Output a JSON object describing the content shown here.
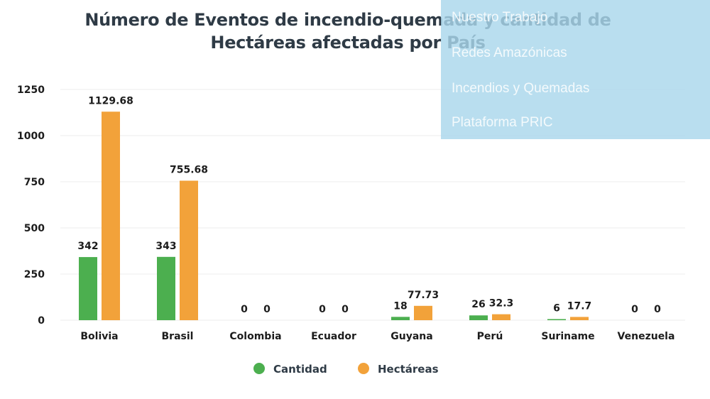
{
  "title_lines": [
    "Número de Eventos de incendio-quemada y cantidad de",
    "Hectáreas afectadas por País"
  ],
  "overlay_menu": {
    "items": [
      "Nuestro Trabajo",
      "Redes Amazónicas",
      "Incendios y Quemadas",
      "Plataforma PRIC"
    ]
  },
  "chart_data": {
    "type": "bar",
    "title": "Número de Eventos de incendio-quemada y cantidad de Hectáreas afectadas por País",
    "categories": [
      "Bolivia",
      "Brasil",
      "Colombia",
      "Ecuador",
      "Guyana",
      "Perú",
      "Suriname",
      "Venezuela"
    ],
    "series": [
      {
        "name": "Cantidad",
        "color": "#4caf4f",
        "values": [
          342,
          343,
          0,
          0,
          18,
          26,
          6,
          0
        ],
        "labels": [
          "342",
          "343",
          "0",
          "0",
          "18",
          "26",
          "6",
          "0"
        ]
      },
      {
        "name": "Hectáreas",
        "color": "#f2a23a",
        "values": [
          1129.68,
          755.68,
          0,
          0,
          77.73,
          32.3,
          17.7,
          0
        ],
        "labels": [
          "1129.68",
          "755.68",
          "0",
          "0",
          "77.73",
          "32.3",
          "17.7",
          "0"
        ]
      }
    ],
    "yticks": [
      0,
      250,
      500,
      750,
      1000,
      1250
    ],
    "ylim": [
      0,
      1250
    ],
    "grid": true,
    "legend_position": "bottom"
  }
}
